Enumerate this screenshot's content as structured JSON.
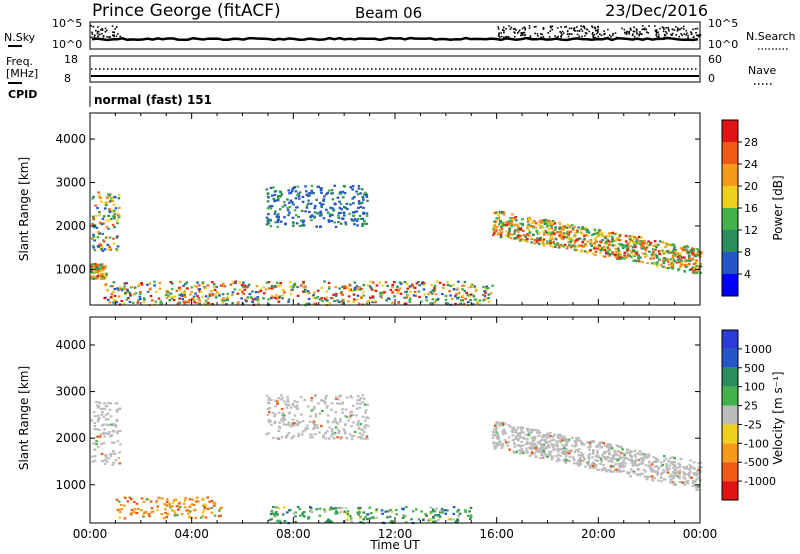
{
  "header": {
    "station": "Prince George (fitACF)",
    "beam": "Beam 06",
    "date": "23/Dec/2016"
  },
  "noise_panel": {
    "left_label": "N.Sky",
    "right_label": "N.Search",
    "left_ticks": [
      "10^5",
      "10^0"
    ],
    "right_ticks": [
      "10^5",
      "10^0"
    ]
  },
  "freq_panel": {
    "left_label_1": "Freq.",
    "left_label_2": "[MHz]",
    "left_ticks": [
      "18",
      "8"
    ],
    "right_label": "Nave",
    "right_ticks": [
      "60",
      "0"
    ]
  },
  "cpid": {
    "label": "CPID",
    "value": "normal (fast) 151"
  },
  "colors": {
    "power_scale": [
      "#0000ff",
      "#2456c8",
      "#2c8c5a",
      "#44b24a",
      "#f0d01e",
      "#f59a1a",
      "#f05a14",
      "#e01414"
    ],
    "velocity_scale": [
      "#e01414",
      "#f05a14",
      "#f59a1a",
      "#f0d01e",
      "#bcbcbc",
      "#44b24a",
      "#2c8c5a",
      "#2456c8",
      "#2c3cd8"
    ],
    "ground_scatter": "#bcbcbc"
  },
  "chart_data": [
    {
      "type": "heatmap",
      "quantity": "Power",
      "ylabel": "Slant Range [km]",
      "y_ticks": [
        "4000",
        "3000",
        "2000",
        "1000"
      ],
      "y_tick_values": [
        4000,
        3000,
        2000,
        1000
      ],
      "ylim": [
        180,
        4600
      ],
      "xlim_hours": [
        0,
        24
      ],
      "colorbar": {
        "label": "Power [dB]",
        "ticks": [
          "28",
          "24",
          "20",
          "16",
          "12",
          "8",
          "4"
        ],
        "range": [
          0,
          32
        ]
      },
      "regions": [
        {
          "t0": 0.0,
          "t1": 1.15,
          "r0": 1450,
          "r1": 2800,
          "level": "mixed_high"
        },
        {
          "t0": 0.0,
          "t1": 0.6,
          "r0": 800,
          "r1": 1150,
          "level": "high"
        },
        {
          "t0": 6.9,
          "t1": 10.9,
          "r0": 2000,
          "r1": 2950,
          "level": "low"
        },
        {
          "t0": 15.8,
          "t1": 24.0,
          "r0": 1100,
          "r1": 2500,
          "level": "high"
        },
        {
          "t0": 0.5,
          "t1": 15.8,
          "r0": 200,
          "r1": 750,
          "level": "mixed"
        }
      ]
    },
    {
      "type": "heatmap",
      "quantity": "Velocity",
      "ylabel": "Slant Range [km]",
      "y_ticks": [
        "4000",
        "3000",
        "2000",
        "1000"
      ],
      "y_tick_values": [
        4000,
        3000,
        2000,
        1000
      ],
      "ylim": [
        180,
        4600
      ],
      "x_ticks": [
        "00:00",
        "04:00",
        "08:00",
        "12:00",
        "16:00",
        "20:00",
        "00:00"
      ],
      "x_tick_hours": [
        0,
        4,
        8,
        12,
        16,
        20,
        24
      ],
      "xlabel": "Time UT",
      "colorbar": {
        "label": "Velocity [m s⁻¹]",
        "ticks": [
          "1000",
          "500",
          "100",
          "25",
          "-25",
          "-100",
          "-500",
          "-1000"
        ]
      },
      "regions": [
        {
          "t0": 0.0,
          "t1": 1.15,
          "r0": 1450,
          "r1": 2800,
          "kind": "ground"
        },
        {
          "t0": 6.9,
          "t1": 10.9,
          "r0": 2000,
          "r1": 2950,
          "kind": "ground"
        },
        {
          "t0": 15.8,
          "t1": 24.0,
          "r0": 1100,
          "r1": 2500,
          "kind": "ground"
        },
        {
          "t0": 1.0,
          "t1": 5.2,
          "r0": 300,
          "r1": 750,
          "kind": "negative"
        },
        {
          "t0": 7.0,
          "t1": 15.0,
          "r0": 200,
          "r1": 550,
          "kind": "positive"
        }
      ]
    }
  ]
}
